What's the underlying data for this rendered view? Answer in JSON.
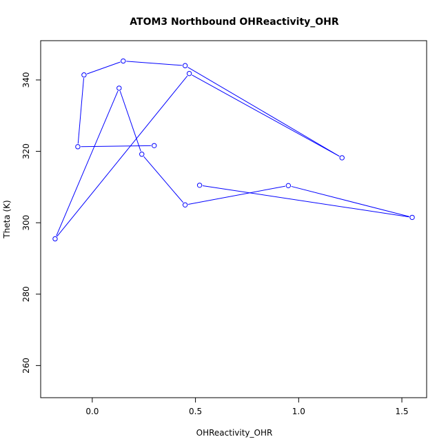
{
  "chart_data": {
    "type": "line",
    "title": "ATOM3 Northbound OHReactivity_OHR",
    "xlabel": "OHReactivity_OHR",
    "ylabel": "Theta (K)",
    "xlim": [
      -0.25,
      1.62
    ],
    "ylim": [
      251,
      351
    ],
    "xticks": [
      "0.0",
      "0.5",
      "1.0",
      "1.5"
    ],
    "yticks": [
      "260",
      "280",
      "300",
      "320",
      "340"
    ],
    "grid": false,
    "series": [
      {
        "color": "#0000ff",
        "x": [
          0.3,
          -0.07,
          -0.04,
          0.15,
          0.45,
          1.21,
          0.47,
          -0.18,
          0.13,
          0.24,
          0.45,
          0.95,
          1.55,
          0.52
        ],
        "y": [
          321.6,
          321.3,
          341.4,
          345.3,
          344.0,
          318.2,
          341.8,
          295.5,
          337.7,
          319.2,
          305.0,
          310.4,
          301.5,
          310.5
        ]
      }
    ]
  }
}
